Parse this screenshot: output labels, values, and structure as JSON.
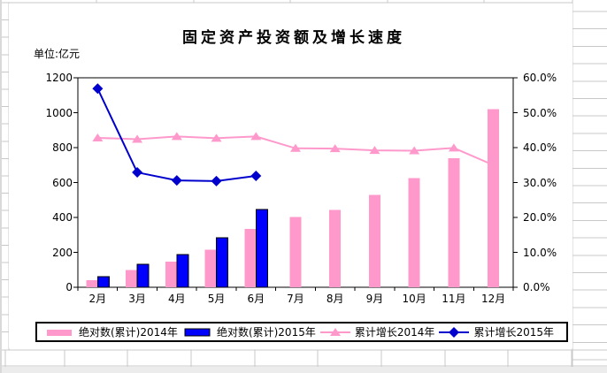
{
  "chart_data": {
    "type": "bar-line-combo",
    "title": "固定资产投资额及增长速度",
    "unit_label": "单位:亿元",
    "categories": [
      "2月",
      "3月",
      "4月",
      "5月",
      "6月",
      "7月",
      "8月",
      "9月",
      "10月",
      "11月",
      "12月"
    ],
    "series": [
      {
        "name": "绝对数(累计)2014年",
        "type": "bar",
        "axis": "left",
        "color": "#FF99CC",
        "border": null,
        "values": [
          40,
          100,
          147,
          215,
          335,
          403,
          442,
          530,
          625,
          740,
          1020
        ]
      },
      {
        "name": "绝对数(累计)2015年",
        "type": "bar",
        "axis": "left",
        "color": "#0000FF",
        "border": "#000000",
        "values": [
          62,
          132,
          188,
          283,
          445,
          null,
          null,
          null,
          null,
          null,
          null
        ]
      },
      {
        "name": "累计增长2014年",
        "type": "line",
        "marker": "triangle",
        "axis": "right",
        "color": "#FF99CC",
        "values": [
          42.8,
          42.4,
          43.2,
          42.7,
          43.2,
          39.8,
          39.7,
          39.2,
          39.1,
          39.9,
          35.0
        ]
      },
      {
        "name": "累计增长2015年",
        "type": "line",
        "marker": "diamond",
        "axis": "right",
        "color": "#0000CC",
        "values": [
          56.9,
          32.9,
          30.6,
          30.4,
          31.9,
          null,
          null,
          null,
          null,
          null,
          null
        ]
      }
    ],
    "y_left": {
      "min": 0,
      "max": 1200,
      "step": 200,
      "labels": [
        "0",
        "200",
        "400",
        "600",
        "800",
        "1000",
        "1200"
      ]
    },
    "y_right": {
      "min": 0,
      "max": 60,
      "step": 10,
      "labels": [
        "0.0%",
        "10.0%",
        "20.0%",
        "30.0%",
        "40.0%",
        "50.0%",
        "60.0%"
      ]
    },
    "gridlines": "none",
    "legend_position": "bottom"
  },
  "sheet": {
    "grid_color": "#c8c8c8",
    "band_color": "#ececec",
    "edge_color": "#d9d9d9"
  }
}
